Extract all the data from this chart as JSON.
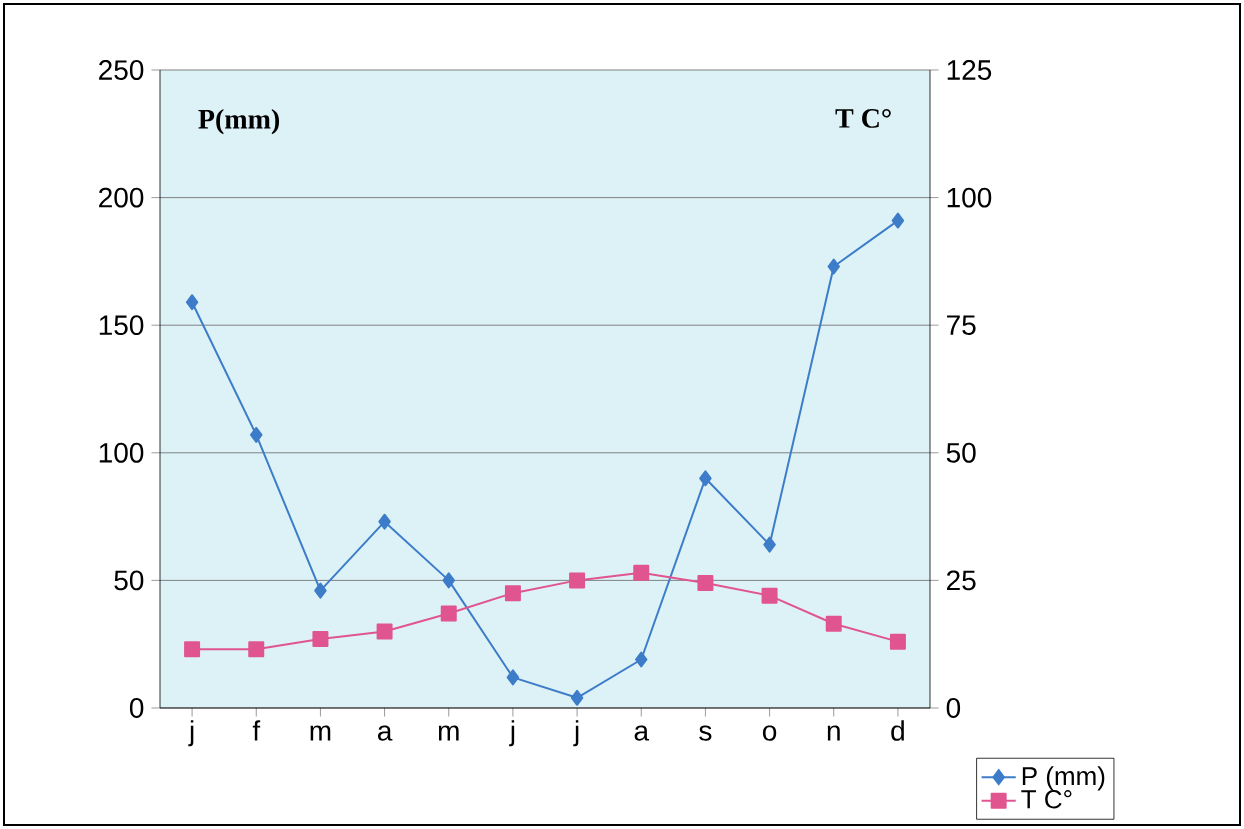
{
  "chart_data": {
    "type": "line",
    "categories": [
      "j",
      "f",
      "m",
      "a",
      "m",
      "j",
      "j",
      "a",
      "s",
      "o",
      "n",
      "d"
    ],
    "series": [
      {
        "name": "P (mm)",
        "color": "#3d7cc9",
        "marker": "diamond",
        "values": [
          159,
          107,
          46,
          73,
          50,
          12,
          4,
          19,
          90,
          64,
          173,
          191
        ]
      },
      {
        "name": "T C°",
        "color": "#e0558f",
        "marker": "square",
        "axis": "y2",
        "values": [
          11.5,
          11.5,
          13.5,
          15,
          18.5,
          22.5,
          25,
          26.5,
          24.5,
          22,
          16.5,
          13
        ]
      }
    ],
    "ylim": [
      0,
      250
    ],
    "yticks": [
      0,
      50,
      100,
      150,
      200,
      250
    ],
    "y2lim": [
      0,
      125
    ],
    "y2ticks": [
      0,
      25,
      50,
      75,
      100,
      125
    ],
    "annotations": [
      "P(mm)",
      "T C°"
    ],
    "grid": "y",
    "legend": "bottom right"
  }
}
